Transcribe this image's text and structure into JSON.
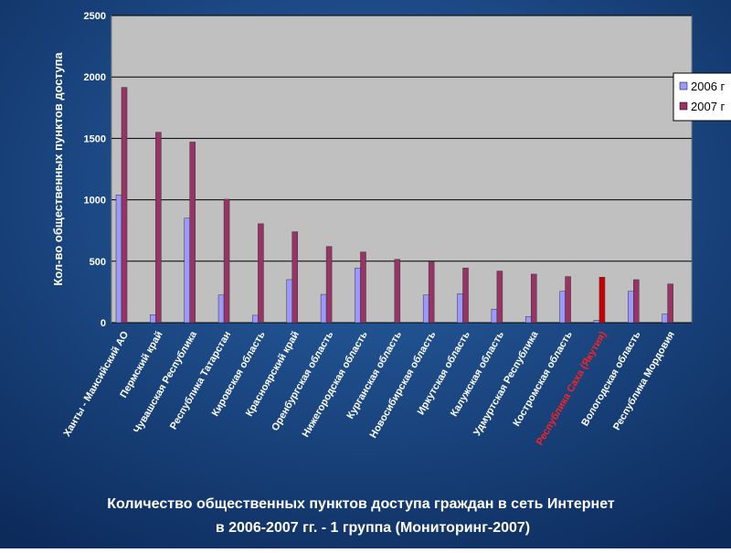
{
  "chart_data": {
    "type": "bar",
    "title": [
      "Количество общественных пунктов доступа граждан в сеть Интернет",
      "в 2006-2007 гг. - 1 группа (Мониторинг-2007)"
    ],
    "y_label": "Кол-во общественных пунктов доступа",
    "categories": [
      "Ханты - Мансийский АО",
      "Пермский край",
      "Чувашская Республика",
      "Республика Татарстан",
      "Кировская область",
      "Красноярский край",
      "Оренбургская область",
      "Нижегородская область",
      "Курганская область",
      "Новосибирская область",
      "Иркутская область",
      "Калужская область",
      "Удмуртская Республика",
      "Костромская область",
      "Республика Саха (Якутия)",
      "Вологодская область",
      "Республика Мордовия"
    ],
    "category_colors": [
      "#ffffff",
      "#ffffff",
      "#ffffff",
      "#ffffff",
      "#ffffff",
      "#ffffff",
      "#ffffff",
      "#ffffff",
      "#ffffff",
      "#ffffff",
      "#ffffff",
      "#ffffff",
      "#ffffff",
      "#ffffff",
      "#ff2020",
      "#ffffff",
      "#ffffff"
    ],
    "series": [
      {
        "name": "2006 г",
        "color": "#9999ff",
        "values": [
          1040,
          65,
          850,
          225,
          60,
          350,
          230,
          445,
          0,
          225,
          235,
          110,
          50,
          255,
          20,
          255,
          70
        ]
      },
      {
        "name": "2007 г",
        "color": "#993366",
        "colors": [
          "#993366",
          "#993366",
          "#993366",
          "#993366",
          "#993366",
          "#993366",
          "#993366",
          "#993366",
          "#993366",
          "#993366",
          "#993366",
          "#993366",
          "#993366",
          "#993366",
          "#cc0000",
          "#993366",
          "#993366"
        ],
        "values": [
          1915,
          1550,
          1470,
          1005,
          805,
          740,
          620,
          575,
          515,
          495,
          445,
          420,
          395,
          375,
          370,
          350,
          315
        ]
      }
    ],
    "ylim": [
      0,
      2500
    ],
    "yticks": [
      0,
      500,
      1000,
      1500,
      2000,
      2500
    ],
    "grid": true,
    "legend": "right"
  }
}
